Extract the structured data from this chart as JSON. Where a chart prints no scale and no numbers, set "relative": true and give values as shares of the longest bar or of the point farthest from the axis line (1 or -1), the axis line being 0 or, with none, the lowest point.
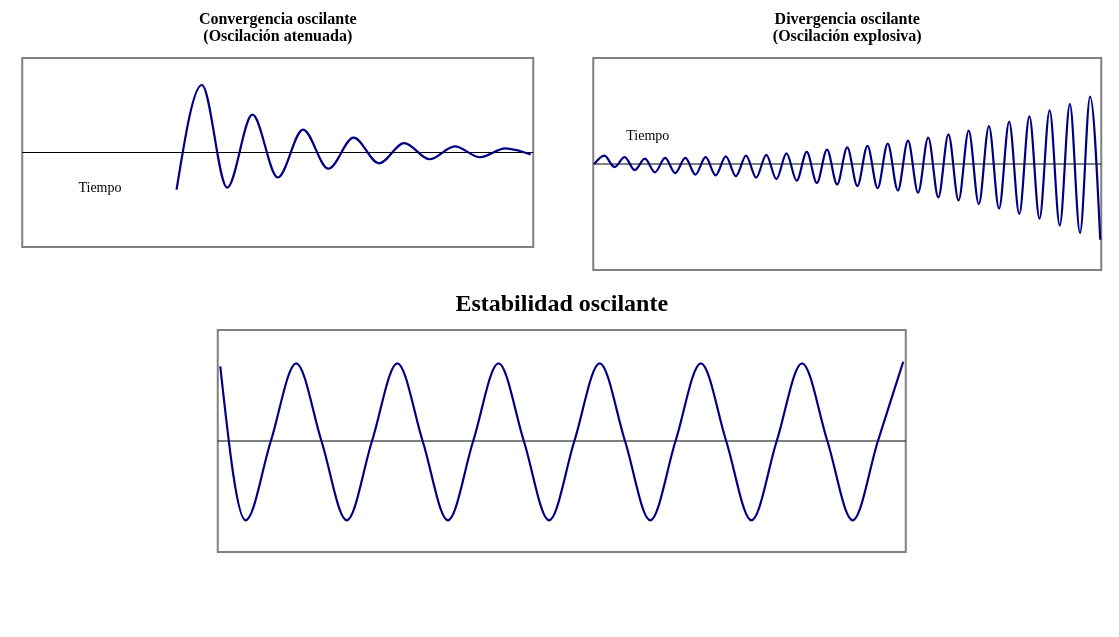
{
  "chart_data": [
    {
      "type": "line",
      "title": "Convergencia oscilante",
      "subtitle": "(Oscilación atenuada)",
      "relative": true,
      "annotations": [
        "Tiempo"
      ],
      "categories": [
        null,
        null,
        null,
        null,
        null,
        null,
        null,
        null,
        null,
        null,
        null,
        null,
        null,
        null,
        null,
        null,
        null,
        null,
        null,
        null,
        null
      ],
      "series": [
        {
          "color": "#000080",
          "values": [
            null,
            null,
            null,
            null,
            null,
            null,
            -0.55,
            1,
            -0.52,
            0.56,
            -0.37,
            0.34,
            -0.24,
            0.22,
            -0.16,
            0.14,
            -0.1,
            0.09,
            -0.07,
            0.06,
            -0.03
          ]
        }
      ]
    },
    {
      "type": "line",
      "title": "Divergencia oscilante",
      "subtitle": "(Oscilación explosiva)",
      "relative": true,
      "annotations": [
        "Tiempo"
      ],
      "categories": [
        null,
        null,
        null,
        null,
        null,
        null,
        null,
        null,
        null,
        null,
        null,
        null,
        null,
        null,
        null,
        null,
        null,
        null,
        null,
        null,
        null,
        null,
        null,
        null,
        null,
        null,
        null,
        null,
        null,
        null,
        null,
        null,
        null,
        null,
        null,
        null,
        null,
        null,
        null,
        null,
        null,
        null,
        null,
        null,
        null,
        null,
        null,
        null,
        null,
        null,
        null
      ],
      "series": [
        {
          "color": "#000080",
          "values": [
            0,
            0.11,
            -0.04,
            0.09,
            -0.08,
            0.07,
            -0.11,
            0.08,
            -0.12,
            0.08,
            -0.14,
            0.09,
            -0.15,
            0.1,
            -0.16,
            0.11,
            -0.18,
            0.12,
            -0.2,
            0.14,
            -0.22,
            0.16,
            -0.25,
            0.19,
            -0.27,
            0.22,
            -0.29,
            0.24,
            -0.32,
            0.27,
            -0.35,
            0.31,
            -0.38,
            0.35,
            -0.44,
            0.39,
            -0.48,
            0.44,
            -0.53,
            0.5,
            -0.59,
            0.56,
            -0.66,
            0.63,
            -0.72,
            0.71,
            -0.81,
            0.79,
            -0.91,
            0.89,
            -1
          ]
        }
      ]
    },
    {
      "type": "line",
      "title": "Estabilidad oscilante",
      "relative": true,
      "categories": [
        null,
        null,
        null,
        null,
        null,
        null,
        null,
        null,
        null,
        null,
        null,
        null,
        null,
        null,
        null,
        null,
        null,
        null,
        null,
        null,
        null,
        null,
        null,
        null,
        null,
        null,
        null,
        null
      ],
      "series": [
        {
          "color": "#000080",
          "values": [
            0.94,
            -1,
            0,
            0.98,
            0,
            -1,
            0,
            0.98,
            0,
            -1,
            0,
            0.98,
            0,
            -1,
            0,
            0.98,
            0,
            -1,
            0,
            0.98,
            0,
            -1,
            0,
            0.98,
            0,
            -1,
            0,
            1
          ]
        }
      ]
    }
  ]
}
